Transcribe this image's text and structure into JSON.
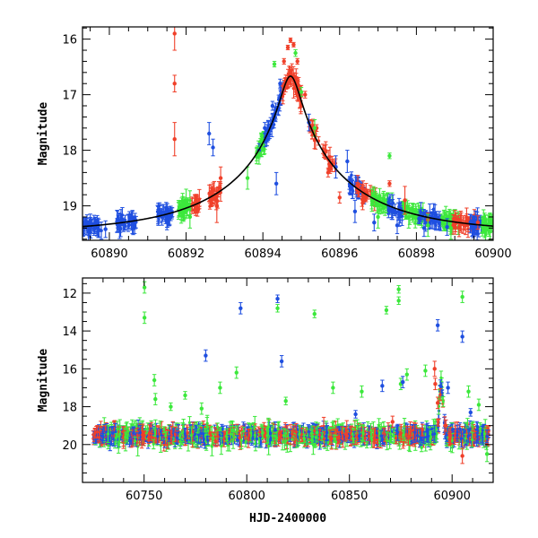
{
  "colors": {
    "blue": "#1f4fe0",
    "red": "#f0402a",
    "green": "#3ce83c",
    "model": "#000000"
  },
  "chart_data": [
    {
      "type": "scatter",
      "title": "",
      "xlabel": "",
      "ylabel": "Magnitude",
      "xlim": [
        60889.3,
        60900.0
      ],
      "ylim": [
        19.62,
        15.78
      ],
      "y_inverted": true,
      "x_major_ticks": [
        60890,
        60892,
        60894,
        60896,
        60898,
        60900
      ],
      "y_major_ticks": [
        16,
        17,
        18,
        19
      ],
      "tick_labels_x": [
        "60890",
        "60892",
        "60894",
        "60896",
        "60898",
        "60900"
      ],
      "tick_labels_y": [
        "16",
        "17",
        "18",
        "19"
      ],
      "model_curve": {
        "t0": 60894.72,
        "u0": 0.075,
        "tE": 3.3,
        "baseline_mag": 19.48,
        "x": [
          60889.3,
          60890.5,
          60891.5,
          60892.3,
          60893.0,
          60893.6,
          60894.0,
          60894.3,
          60894.5,
          60894.72,
          60894.95,
          60895.2,
          60895.5,
          60896.0,
          60896.8,
          60897.8,
          60899.0,
          60900.0
        ],
        "y": [
          19.38,
          19.33,
          19.26,
          19.15,
          18.97,
          18.67,
          18.28,
          17.77,
          17.25,
          16.02,
          17.16,
          17.84,
          18.36,
          18.8,
          19.11,
          19.3,
          19.4,
          19.44
        ]
      },
      "series": [
        {
          "color": "blue",
          "points": [
            [
              60889.6,
              19.35,
              0.18
            ],
            [
              60889.9,
              19.42,
              0.15
            ],
            [
              60890.2,
              19.28,
              0.2
            ],
            [
              60890.6,
              19.3,
              0.2
            ],
            [
              60891.5,
              19.28,
              0.15
            ],
            [
              60892.6,
              17.7,
              0.2
            ],
            [
              60892.7,
              17.95,
              0.15
            ],
            [
              60893.9,
              18.0,
              0.12
            ],
            [
              60894.05,
              17.6,
              0.1
            ],
            [
              60894.25,
              17.2,
              0.08
            ],
            [
              60894.45,
              16.8,
              0.08
            ],
            [
              60894.35,
              18.6,
              0.2
            ],
            [
              60895.2,
              17.5,
              0.15
            ],
            [
              60895.9,
              18.3,
              0.2
            ],
            [
              60896.2,
              18.2,
              0.2
            ],
            [
              60896.4,
              19.1,
              0.2
            ],
            [
              60896.9,
              19.3,
              0.15
            ],
            [
              60897.5,
              19.35,
              0.15
            ],
            [
              60898.2,
              19.4,
              0.15
            ],
            [
              60898.8,
              19.38,
              0.15
            ],
            [
              60899.6,
              19.36,
              0.15
            ]
          ]
        },
        {
          "color": "red",
          "points": [
            [
              60891.7,
              15.9,
              0.3
            ],
            [
              60891.7,
              16.8,
              0.15
            ],
            [
              60891.7,
              17.8,
              0.3
            ],
            [
              60892.8,
              19.0,
              0.3
            ],
            [
              60892.9,
              18.5,
              0.2
            ],
            [
              60894.55,
              16.4,
              0.05
            ],
            [
              60894.65,
              16.15,
              0.04
            ],
            [
              60894.72,
              16.02,
              0.04
            ],
            [
              60894.8,
              16.1,
              0.04
            ],
            [
              60894.9,
              16.4,
              0.05
            ],
            [
              60895.1,
              17.0,
              0.06
            ],
            [
              60895.4,
              17.6,
              0.06
            ],
            [
              60895.7,
              18.4,
              0.08
            ],
            [
              60896.0,
              18.85,
              0.1
            ],
            [
              60896.6,
              18.95,
              0.12
            ],
            [
              60897.3,
              18.6,
              0.05
            ],
            [
              60897.7,
              18.9,
              0.25
            ],
            [
              60898.3,
              19.25,
              0.12
            ],
            [
              60899.1,
              19.3,
              0.12
            ],
            [
              60899.6,
              19.3,
              0.12
            ]
          ]
        },
        {
          "color": "green",
          "points": [
            [
              60892.0,
              18.9,
              0.2
            ],
            [
              60892.1,
              19.2,
              0.2
            ],
            [
              60893.6,
              18.5,
              0.2
            ],
            [
              60893.9,
              18.1,
              0.15
            ],
            [
              60894.3,
              16.45,
              0.05
            ],
            [
              60894.85,
              16.25,
              0.06
            ],
            [
              60895.0,
              16.95,
              0.08
            ],
            [
              60895.35,
              17.6,
              0.15
            ],
            [
              60897.0,
              19.2,
              0.2
            ],
            [
              60897.3,
              18.1,
              0.05
            ],
            [
              60897.8,
              19.2,
              0.2
            ],
            [
              60898.3,
              19.35,
              0.2
            ],
            [
              60898.9,
              19.4,
              0.2
            ],
            [
              60899.8,
              19.42,
              0.2
            ]
          ]
        }
      ]
    },
    {
      "type": "scatter",
      "title": "",
      "xlabel": "HJD-2400000",
      "ylabel": "Magnitude",
      "xlim": [
        60720.0,
        60920.0
      ],
      "ylim": [
        22.0,
        11.2
      ],
      "y_inverted": true,
      "x_major_ticks": [
        60750,
        60800,
        60850,
        60900
      ],
      "y_major_ticks": [
        12,
        14,
        16,
        18,
        20
      ],
      "tick_labels_x": [
        "60750",
        "60800",
        "60850",
        "60900"
      ],
      "tick_labels_y": [
        "12",
        "14",
        "16",
        "18",
        "20"
      ],
      "series": [
        {
          "color": "green",
          "points": [
            [
              60750.2,
              11.7,
              0.3
            ],
            [
              60750.2,
              13.3,
              0.3
            ],
            [
              60755.0,
              16.6,
              0.3
            ],
            [
              60755.5,
              17.6,
              0.3
            ],
            [
              60763.0,
              18.0,
              0.2
            ],
            [
              60770.0,
              17.4,
              0.2
            ],
            [
              60778.0,
              18.1,
              0.3
            ],
            [
              60787.0,
              17.0,
              0.3
            ],
            [
              60795.0,
              16.2,
              0.3
            ],
            [
              60815.0,
              12.8,
              0.2
            ],
            [
              60819.0,
              17.7,
              0.2
            ],
            [
              60833.0,
              13.1,
              0.2
            ],
            [
              60842.0,
              17.0,
              0.3
            ],
            [
              60856.0,
              17.2,
              0.3
            ],
            [
              60868.0,
              12.9,
              0.2
            ],
            [
              60874.0,
              11.8,
              0.2
            ],
            [
              60874.0,
              12.4,
              0.2
            ],
            [
              60875.0,
              16.8,
              0.3
            ],
            [
              60878.0,
              16.3,
              0.3
            ],
            [
              60887.0,
              16.1,
              0.3
            ],
            [
              60905.0,
              12.2,
              0.3
            ],
            [
              60908.0,
              17.2,
              0.3
            ],
            [
              60913.0,
              17.9,
              0.3
            ],
            [
              60917.0,
              20.5,
              0.4
            ]
          ]
        },
        {
          "color": "blue",
          "points": [
            [
              60780.0,
              15.3,
              0.3
            ],
            [
              60797.0,
              12.8,
              0.3
            ],
            [
              60815.0,
              12.3,
              0.2
            ],
            [
              60817.0,
              15.6,
              0.3
            ],
            [
              60853.0,
              18.4,
              0.2
            ],
            [
              60866.0,
              16.9,
              0.3
            ],
            [
              60876.0,
              16.7,
              0.3
            ],
            [
              60893.0,
              13.7,
              0.3
            ],
            [
              60905.0,
              14.3,
              0.3
            ],
            [
              60898.0,
              17.0,
              0.3
            ],
            [
              60909.0,
              18.3,
              0.2
            ]
          ]
        },
        {
          "color": "red",
          "points": [
            [
              60871.0,
              18.8,
              0.3
            ],
            [
              60891.5,
              16.0,
              0.4
            ],
            [
              60891.8,
              16.8,
              0.3
            ],
            [
              60893.0,
              17.8,
              0.3
            ],
            [
              60897.0,
              19.0,
              0.3
            ],
            [
              60905.0,
              20.6,
              0.4
            ]
          ]
        }
      ]
    }
  ]
}
